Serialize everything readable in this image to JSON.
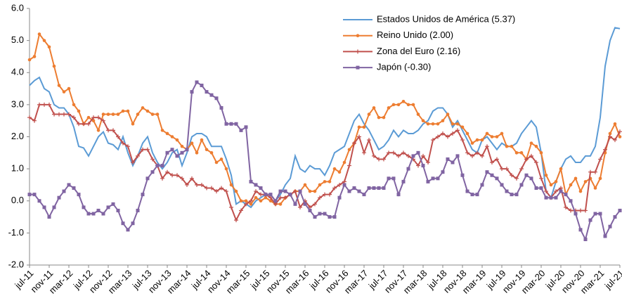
{
  "chart_data": {
    "type": "line",
    "categories": [
      "jul-11",
      null,
      null,
      null,
      "nov-11",
      null,
      null,
      null,
      "mar-12",
      null,
      null,
      null,
      "jul-12",
      null,
      null,
      null,
      "nov-12",
      null,
      null,
      null,
      "mar-13",
      null,
      null,
      null,
      "jul-13",
      null,
      null,
      null,
      "nov-13",
      null,
      null,
      null,
      "mar-14",
      null,
      null,
      null,
      "jul-14",
      null,
      null,
      null,
      "nov-14",
      null,
      null,
      null,
      "mar-15",
      null,
      null,
      null,
      "jul-15",
      null,
      null,
      null,
      "nov-15",
      null,
      null,
      null,
      "mar-16",
      null,
      null,
      null,
      "jul-16",
      null,
      null,
      null,
      "nov-16",
      null,
      null,
      null,
      "mar-17",
      null,
      null,
      null,
      "jul-17",
      null,
      null,
      null,
      "nov-17",
      null,
      null,
      null,
      "mar-18",
      null,
      null,
      null,
      "jul-18",
      null,
      null,
      null,
      "nov-18",
      null,
      null,
      null,
      "mar-19",
      null,
      null,
      null,
      "jul-19",
      null,
      null,
      null,
      "nov-19",
      null,
      null,
      null,
      "mar-20",
      null,
      null,
      null,
      "jul-20",
      null,
      null,
      null,
      "nov-20",
      null,
      null,
      null,
      "mar-21",
      null,
      null,
      null,
      "jul-21"
    ],
    "series": [
      {
        "name": "Estados Unidos de América (5.37)",
        "color": "#5b9bd5",
        "marker": "none",
        "values": [
          3.6,
          3.75,
          3.85,
          3.5,
          3.4,
          3.0,
          2.9,
          2.9,
          2.7,
          2.3,
          1.7,
          1.65,
          1.4,
          1.7,
          2.0,
          2.15,
          1.8,
          1.75,
          1.6,
          2.0,
          1.5,
          1.1,
          1.4,
          1.8,
          2.0,
          1.5,
          1.2,
          1.0,
          1.2,
          1.5,
          1.6,
          1.1,
          1.5,
          2.0,
          2.1,
          2.1,
          2.0,
          1.7,
          1.7,
          1.7,
          1.3,
          0.8,
          -0.1,
          0.0,
          -0.1,
          -0.2,
          0.0,
          0.1,
          0.2,
          0.2,
          0.0,
          0.2,
          0.5,
          0.7,
          1.4,
          1.0,
          0.9,
          1.1,
          1.0,
          1.0,
          0.8,
          1.1,
          1.5,
          1.6,
          1.7,
          2.1,
          2.5,
          2.7,
          2.4,
          2.2,
          1.9,
          1.6,
          1.7,
          1.9,
          2.2,
          2.0,
          2.2,
          2.1,
          2.1,
          2.2,
          2.4,
          2.5,
          2.8,
          2.9,
          2.9,
          2.7,
          2.3,
          2.5,
          2.2,
          1.9,
          1.6,
          1.5,
          1.9,
          2.0,
          1.8,
          1.6,
          1.8,
          1.7,
          1.7,
          1.8,
          2.1,
          2.3,
          2.5,
          2.3,
          1.5,
          0.3,
          0.1,
          0.6,
          1.0,
          1.3,
          1.4,
          1.2,
          1.2,
          1.4,
          1.4,
          1.7,
          2.6,
          4.2,
          5.0,
          5.4,
          5.37
        ]
      },
      {
        "name": "Reino Unido (2.00)",
        "color": "#ed7d31",
        "marker": "circle",
        "values": [
          4.4,
          4.5,
          5.2,
          5.0,
          4.8,
          4.2,
          3.6,
          3.4,
          3.5,
          3.0,
          2.8,
          2.4,
          2.6,
          2.5,
          2.2,
          2.7,
          2.7,
          2.7,
          2.7,
          2.8,
          2.8,
          2.4,
          2.7,
          2.9,
          2.8,
          2.7,
          2.7,
          2.2,
          2.1,
          2.0,
          1.9,
          1.7,
          1.6,
          1.8,
          1.5,
          1.9,
          1.6,
          1.5,
          1.2,
          1.3,
          1.0,
          0.5,
          0.3,
          0.0,
          0.0,
          -0.1,
          0.1,
          0.0,
          0.1,
          0.0,
          -0.1,
          -0.1,
          0.1,
          0.2,
          0.3,
          0.3,
          0.5,
          0.3,
          0.3,
          0.5,
          0.6,
          0.6,
          1.0,
          0.9,
          1.2,
          1.6,
          1.8,
          2.3,
          2.3,
          2.7,
          2.9,
          2.6,
          2.6,
          2.9,
          3.0,
          3.0,
          3.1,
          3.0,
          3.0,
          2.7,
          2.5,
          2.4,
          2.4,
          2.4,
          2.5,
          2.7,
          2.4,
          2.4,
          2.3,
          2.1,
          1.8,
          1.9,
          1.9,
          2.1,
          2.0,
          2.0,
          2.1,
          1.7,
          1.7,
          1.5,
          1.5,
          1.3,
          1.8,
          1.7,
          1.5,
          0.8,
          0.5,
          0.6,
          1.0,
          0.2,
          0.5,
          0.7,
          0.3,
          0.6,
          0.7,
          0.4,
          0.7,
          1.5,
          2.1,
          2.4,
          2.0
        ]
      },
      {
        "name": "Zona del Euro (2.16)",
        "color": "#c0504d",
        "marker": "plus",
        "values": [
          2.6,
          2.5,
          3.0,
          3.0,
          3.0,
          2.7,
          2.7,
          2.7,
          2.7,
          2.6,
          2.4,
          2.4,
          2.4,
          2.6,
          2.6,
          2.5,
          2.2,
          2.2,
          2.0,
          1.8,
          1.7,
          1.2,
          1.4,
          1.6,
          1.6,
          1.3,
          1.1,
          0.7,
          0.9,
          0.8,
          0.8,
          0.7,
          0.5,
          0.7,
          0.5,
          0.5,
          0.4,
          0.4,
          0.3,
          0.4,
          0.3,
          -0.2,
          -0.6,
          -0.3,
          -0.1,
          0.0,
          0.3,
          0.2,
          0.2,
          0.1,
          -0.1,
          0.1,
          0.1,
          0.2,
          0.3,
          -0.2,
          0.0,
          -0.2,
          -0.1,
          0.1,
          0.2,
          0.2,
          0.4,
          0.5,
          0.6,
          1.1,
          1.8,
          2.0,
          1.5,
          1.9,
          1.4,
          1.3,
          1.3,
          1.5,
          1.5,
          1.4,
          1.5,
          1.4,
          1.3,
          1.1,
          1.4,
          1.2,
          1.9,
          2.0,
          2.1,
          2.0,
          2.1,
          2.2,
          1.9,
          1.5,
          1.4,
          1.5,
          1.4,
          1.7,
          1.2,
          1.3,
          1.0,
          1.0,
          0.8,
          0.7,
          1.0,
          1.3,
          1.4,
          1.2,
          0.7,
          0.3,
          0.1,
          0.3,
          0.4,
          -0.2,
          -0.3,
          -0.3,
          -0.3,
          -0.3,
          0.9,
          0.9,
          1.3,
          1.6,
          2.0,
          1.9,
          2.16
        ]
      },
      {
        "name": "Japón (-0.30)",
        "color": "#8064a2",
        "marker": "square",
        "values": [
          0.2,
          0.2,
          0.0,
          -0.2,
          -0.5,
          -0.2,
          0.1,
          0.3,
          0.5,
          0.4,
          0.2,
          -0.2,
          -0.4,
          -0.4,
          -0.3,
          -0.4,
          -0.2,
          -0.1,
          -0.3,
          -0.7,
          -0.9,
          -0.7,
          -0.3,
          0.2,
          0.7,
          0.9,
          1.1,
          1.1,
          1.5,
          1.6,
          1.4,
          1.5,
          1.6,
          3.4,
          3.7,
          3.6,
          3.4,
          3.3,
          3.2,
          2.9,
          2.4,
          2.4,
          2.4,
          2.2,
          2.3,
          0.6,
          0.5,
          0.4,
          0.2,
          0.2,
          0.0,
          0.3,
          0.3,
          0.2,
          -0.1,
          0.3,
          -0.1,
          -0.3,
          -0.5,
          -0.4,
          -0.4,
          -0.5,
          -0.5,
          0.1,
          0.5,
          0.3,
          0.4,
          0.3,
          0.2,
          0.4,
          0.4,
          0.4,
          0.4,
          0.7,
          0.7,
          0.2,
          0.6,
          1.0,
          1.4,
          1.5,
          1.1,
          0.6,
          0.7,
          0.7,
          0.9,
          1.3,
          1.2,
          1.4,
          0.8,
          0.3,
          0.2,
          0.2,
          0.5,
          0.9,
          0.8,
          0.7,
          0.5,
          0.3,
          0.2,
          0.2,
          0.5,
          0.8,
          0.7,
          0.4,
          0.4,
          0.1,
          0.1,
          0.1,
          0.3,
          0.2,
          0.0,
          -0.4,
          -0.9,
          -1.2,
          -0.6,
          -0.4,
          -0.4,
          -1.1,
          -0.8,
          -0.5,
          -0.3
        ]
      }
    ],
    "ylim": [
      -2,
      6
    ],
    "yticks": [
      {
        "value": -2,
        "label": "-2.0"
      },
      {
        "value": -1,
        "label": "-1.0"
      },
      {
        "value": 0,
        "label": "0.0"
      },
      {
        "value": 1,
        "label": "1.0"
      },
      {
        "value": 2,
        "label": "2.0"
      },
      {
        "value": 3,
        "label": "3.0"
      },
      {
        "value": 4,
        "label": "4.0"
      },
      {
        "value": 5,
        "label": "5.0"
      },
      {
        "value": 6,
        "label": "6.0"
      }
    ],
    "grid": false,
    "legend": "upper right"
  }
}
